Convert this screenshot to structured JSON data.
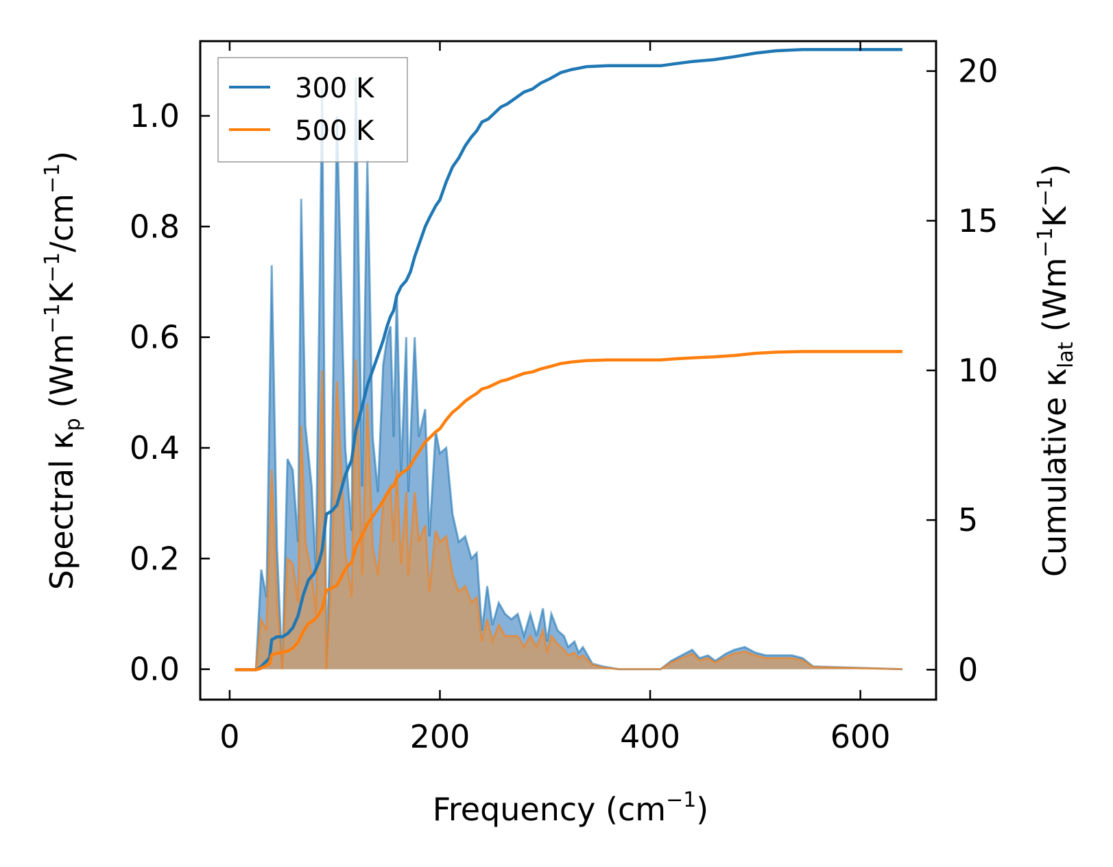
{
  "colors": {
    "series_300": "#1f77b4",
    "series_500": "#ff7f0e",
    "fill_300": "#7fadd6",
    "fill_500": "#c79d74"
  },
  "chart_data": {
    "type": "line",
    "title": "",
    "xlabel": {
      "main": "Frequency (cm",
      "sup": "−1",
      "tail": ")"
    },
    "ylabel_left": {
      "pre": "Spectral κ",
      "sub": "p",
      "mid": " (Wm",
      "sup1": "−1",
      "k": "K",
      "sup2": "−1",
      "cm": "/cm",
      "sup3": "−1",
      "tail": ")"
    },
    "ylabel_right": {
      "pre": "Cumulative κ",
      "sub": "lat",
      "mid": " (Wm",
      "sup1": "−1",
      "k": "K",
      "sup2": "−1",
      "tail": ")"
    },
    "xlim": [
      -28,
      672
    ],
    "ylim_left": [
      -0.055,
      1.135
    ],
    "ylim_right": [
      -1.0,
      21.0
    ],
    "xticks": [
      0,
      200,
      400,
      600
    ],
    "xtick_labels": [
      "0",
      "200",
      "400",
      "600"
    ],
    "yticks_left": [
      0.0,
      0.2,
      0.4,
      0.6,
      0.8,
      1.0
    ],
    "ytick_labels_left": [
      "0.0",
      "0.2",
      "0.4",
      "0.6",
      "0.8",
      "1.0"
    ],
    "yticks_right": [
      0,
      5,
      10,
      15,
      20
    ],
    "ytick_labels_right": [
      "0",
      "5",
      "10",
      "15",
      "20"
    ],
    "legend": {
      "position": "top-left",
      "entries": [
        "300 K",
        "500 K"
      ]
    },
    "spectral": {
      "300 K": [
        [
          5,
          0
        ],
        [
          25,
          0
        ],
        [
          30,
          0.18
        ],
        [
          35,
          0.13
        ],
        [
          40,
          0.73
        ],
        [
          45,
          0.22
        ],
        [
          50,
          0
        ],
        [
          55,
          0.38
        ],
        [
          60,
          0.36
        ],
        [
          65,
          0.23
        ],
        [
          68,
          0.85
        ],
        [
          72,
          0.44
        ],
        [
          78,
          0.33
        ],
        [
          82,
          0.18
        ],
        [
          88,
          1.05
        ],
        [
          92,
          0
        ],
        [
          97,
          0.33
        ],
        [
          102,
          1.0
        ],
        [
          110,
          0.4
        ],
        [
          116,
          0.25
        ],
        [
          120,
          1.07
        ],
        [
          126,
          0.33
        ],
        [
          131,
          0.92
        ],
        [
          136,
          0.42
        ],
        [
          141,
          0.32
        ],
        [
          146,
          0.55
        ],
        [
          150,
          0.6
        ],
        [
          153,
          0.62
        ],
        [
          156,
          0.42
        ],
        [
          159,
          0.68
        ],
        [
          163,
          0.35
        ],
        [
          168,
          0.6
        ],
        [
          170,
          0.32
        ],
        [
          176,
          0.6
        ],
        [
          180,
          0.42
        ],
        [
          186,
          0.47
        ],
        [
          190,
          0.24
        ],
        [
          196,
          0.43
        ],
        [
          200,
          0.39
        ],
        [
          206,
          0.4
        ],
        [
          212,
          0.28
        ],
        [
          218,
          0.23
        ],
        [
          224,
          0.24
        ],
        [
          230,
          0.2
        ],
        [
          235,
          0.21
        ],
        [
          240,
          0.07
        ],
        [
          245,
          0.15
        ],
        [
          250,
          0.08
        ],
        [
          256,
          0.12
        ],
        [
          262,
          0.1
        ],
        [
          268,
          0.09
        ],
        [
          274,
          0.1
        ],
        [
          280,
          0.06
        ],
        [
          286,
          0.1
        ],
        [
          292,
          0.06
        ],
        [
          298,
          0.11
        ],
        [
          302,
          0.05
        ],
        [
          306,
          0.1
        ],
        [
          312,
          0.07
        ],
        [
          318,
          0.06
        ],
        [
          322,
          0.04
        ],
        [
          328,
          0.05
        ],
        [
          332,
          0.03
        ],
        [
          336,
          0.04
        ],
        [
          345,
          0.01
        ],
        [
          355,
          0.005
        ],
        [
          370,
          0
        ],
        [
          410,
          0
        ],
        [
          420,
          0.015
        ],
        [
          430,
          0.025
        ],
        [
          440,
          0.035
        ],
        [
          447,
          0.02
        ],
        [
          455,
          0.025
        ],
        [
          462,
          0.015
        ],
        [
          472,
          0.028
        ],
        [
          480,
          0.035
        ],
        [
          490,
          0.04
        ],
        [
          500,
          0.03
        ],
        [
          510,
          0.025
        ],
        [
          522,
          0.025
        ],
        [
          535,
          0.025
        ],
        [
          545,
          0.02
        ],
        [
          555,
          0.005
        ],
        [
          640,
          0
        ]
      ],
      "500 K": [
        [
          5,
          0
        ],
        [
          25,
          0
        ],
        [
          30,
          0.09
        ],
        [
          35,
          0.07
        ],
        [
          40,
          0.36
        ],
        [
          45,
          0.12
        ],
        [
          50,
          0
        ],
        [
          55,
          0.2
        ],
        [
          60,
          0.19
        ],
        [
          65,
          0.12
        ],
        [
          68,
          0.44
        ],
        [
          72,
          0.23
        ],
        [
          78,
          0.17
        ],
        [
          82,
          0.1
        ],
        [
          88,
          0.54
        ],
        [
          92,
          0
        ],
        [
          97,
          0.17
        ],
        [
          102,
          0.52
        ],
        [
          110,
          0.21
        ],
        [
          116,
          0.13
        ],
        [
          120,
          0.56
        ],
        [
          126,
          0.17
        ],
        [
          131,
          0.48
        ],
        [
          136,
          0.22
        ],
        [
          141,
          0.17
        ],
        [
          146,
          0.3
        ],
        [
          150,
          0.32
        ],
        [
          153,
          0.33
        ],
        [
          156,
          0.23
        ],
        [
          159,
          0.36
        ],
        [
          163,
          0.19
        ],
        [
          168,
          0.32
        ],
        [
          170,
          0.17
        ],
        [
          176,
          0.32
        ],
        [
          180,
          0.23
        ],
        [
          186,
          0.26
        ],
        [
          190,
          0.14
        ],
        [
          196,
          0.25
        ],
        [
          200,
          0.23
        ],
        [
          206,
          0.24
        ],
        [
          212,
          0.17
        ],
        [
          218,
          0.14
        ],
        [
          224,
          0.15
        ],
        [
          230,
          0.12
        ],
        [
          235,
          0.13
        ],
        [
          240,
          0.05
        ],
        [
          245,
          0.09
        ],
        [
          250,
          0.05
        ],
        [
          256,
          0.08
        ],
        [
          262,
          0.06
        ],
        [
          268,
          0.06
        ],
        [
          274,
          0.06
        ],
        [
          280,
          0.04
        ],
        [
          286,
          0.06
        ],
        [
          292,
          0.04
        ],
        [
          298,
          0.07
        ],
        [
          302,
          0.03
        ],
        [
          306,
          0.06
        ],
        [
          312,
          0.045
        ],
        [
          318,
          0.035
        ],
        [
          322,
          0.025
        ],
        [
          328,
          0.03
        ],
        [
          332,
          0.02
        ],
        [
          336,
          0.025
        ],
        [
          345,
          0.008
        ],
        [
          355,
          0.003
        ],
        [
          370,
          0
        ],
        [
          410,
          0
        ],
        [
          420,
          0.012
        ],
        [
          430,
          0.02
        ],
        [
          440,
          0.028
        ],
        [
          447,
          0.016
        ],
        [
          455,
          0.02
        ],
        [
          462,
          0.012
        ],
        [
          472,
          0.022
        ],
        [
          480,
          0.028
        ],
        [
          490,
          0.032
        ],
        [
          500,
          0.025
        ],
        [
          510,
          0.02
        ],
        [
          522,
          0.02
        ],
        [
          535,
          0.02
        ],
        [
          545,
          0.016
        ],
        [
          555,
          0.004
        ],
        [
          640,
          0
        ]
      ]
    },
    "cumulative": {
      "300 K": [
        [
          5,
          0
        ],
        [
          25,
          0
        ],
        [
          30,
          0.1
        ],
        [
          38,
          0.4
        ],
        [
          40,
          1.0
        ],
        [
          45,
          1.1
        ],
        [
          50,
          1.1
        ],
        [
          55,
          1.2
        ],
        [
          60,
          1.4
        ],
        [
          65,
          1.8
        ],
        [
          70,
          2.5
        ],
        [
          75,
          3.0
        ],
        [
          80,
          3.2
        ],
        [
          85,
          3.6
        ],
        [
          88,
          4.0
        ],
        [
          92,
          5.2
        ],
        [
          97,
          5.3
        ],
        [
          102,
          5.5
        ],
        [
          110,
          6.5
        ],
        [
          116,
          7.0
        ],
        [
          120,
          8.0
        ],
        [
          126,
          8.8
        ],
        [
          131,
          9.5
        ],
        [
          136,
          10.0
        ],
        [
          141,
          10.5
        ],
        [
          146,
          11.0
        ],
        [
          150,
          11.5
        ],
        [
          153,
          11.8
        ],
        [
          156,
          12.0
        ],
        [
          159,
          12.5
        ],
        [
          163,
          12.8
        ],
        [
          168,
          13.0
        ],
        [
          172,
          13.3
        ],
        [
          176,
          13.8
        ],
        [
          180,
          14.2
        ],
        [
          186,
          14.8
        ],
        [
          190,
          15.1
        ],
        [
          196,
          15.5
        ],
        [
          200,
          15.7
        ],
        [
          206,
          16.3
        ],
        [
          212,
          16.8
        ],
        [
          218,
          17.1
        ],
        [
          224,
          17.5
        ],
        [
          230,
          17.8
        ],
        [
          235,
          18.0
        ],
        [
          240,
          18.3
        ],
        [
          246,
          18.4
        ],
        [
          252,
          18.6
        ],
        [
          258,
          18.8
        ],
        [
          264,
          18.9
        ],
        [
          270,
          19.05
        ],
        [
          280,
          19.3
        ],
        [
          288,
          19.4
        ],
        [
          296,
          19.6
        ],
        [
          305,
          19.75
        ],
        [
          315,
          19.95
        ],
        [
          325,
          20.05
        ],
        [
          340,
          20.15
        ],
        [
          360,
          20.18
        ],
        [
          410,
          20.18
        ],
        [
          425,
          20.25
        ],
        [
          440,
          20.32
        ],
        [
          460,
          20.38
        ],
        [
          480,
          20.48
        ],
        [
          500,
          20.6
        ],
        [
          520,
          20.68
        ],
        [
          545,
          20.72
        ],
        [
          640,
          20.72
        ]
      ],
      "500 K": [
        [
          5,
          0
        ],
        [
          25,
          0
        ],
        [
          30,
          0.05
        ],
        [
          38,
          0.2
        ],
        [
          40,
          0.5
        ],
        [
          45,
          0.55
        ],
        [
          50,
          0.58
        ],
        [
          55,
          0.62
        ],
        [
          60,
          0.72
        ],
        [
          65,
          0.92
        ],
        [
          70,
          1.28
        ],
        [
          75,
          1.55
        ],
        [
          80,
          1.65
        ],
        [
          85,
          1.85
        ],
        [
          88,
          2.05
        ],
        [
          92,
          2.65
        ],
        [
          97,
          2.72
        ],
        [
          102,
          2.82
        ],
        [
          110,
          3.35
        ],
        [
          116,
          3.6
        ],
        [
          120,
          4.1
        ],
        [
          126,
          4.5
        ],
        [
          131,
          4.87
        ],
        [
          136,
          5.12
        ],
        [
          141,
          5.38
        ],
        [
          146,
          5.64
        ],
        [
          150,
          5.9
        ],
        [
          153,
          6.05
        ],
        [
          156,
          6.15
        ],
        [
          159,
          6.4
        ],
        [
          163,
          6.56
        ],
        [
          168,
          6.67
        ],
        [
          172,
          6.82
        ],
        [
          176,
          7.07
        ],
        [
          180,
          7.28
        ],
        [
          186,
          7.6
        ],
        [
          190,
          7.74
        ],
        [
          196,
          7.95
        ],
        [
          200,
          8.05
        ],
        [
          206,
          8.35
        ],
        [
          212,
          8.6
        ],
        [
          218,
          8.77
        ],
        [
          224,
          8.97
        ],
        [
          230,
          9.12
        ],
        [
          235,
          9.23
        ],
        [
          240,
          9.38
        ],
        [
          246,
          9.44
        ],
        [
          252,
          9.54
        ],
        [
          258,
          9.64
        ],
        [
          264,
          9.69
        ],
        [
          270,
          9.77
        ],
        [
          280,
          9.9
        ],
        [
          288,
          9.95
        ],
        [
          296,
          10.05
        ],
        [
          305,
          10.13
        ],
        [
          315,
          10.23
        ],
        [
          325,
          10.28
        ],
        [
          340,
          10.33
        ],
        [
          360,
          10.35
        ],
        [
          410,
          10.35
        ],
        [
          425,
          10.39
        ],
        [
          440,
          10.42
        ],
        [
          460,
          10.45
        ],
        [
          480,
          10.5
        ],
        [
          500,
          10.57
        ],
        [
          520,
          10.61
        ],
        [
          545,
          10.63
        ],
        [
          640,
          10.63
        ]
      ]
    }
  }
}
